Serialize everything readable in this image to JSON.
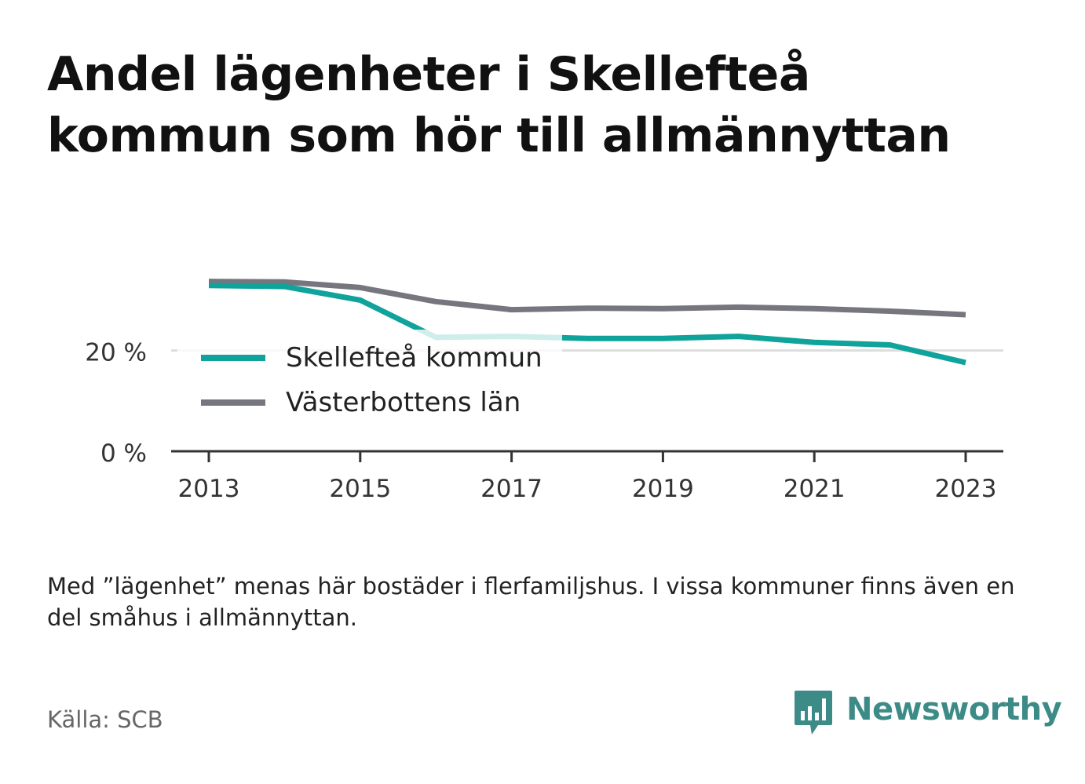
{
  "title": "Andel lägenheter i Skellefteå kommun som hör till allmännyttan",
  "note": "Med ”lägenhet” menas här bostäder i flerfamiljshus. I vissa kommuner finns även en del småhus i allmännyttan.",
  "source": "Källa: SCB",
  "brand": {
    "name": "Newsworthy",
    "color": "#3d8b87",
    "icon": "bar-chart-speech-bubble-icon"
  },
  "colors": {
    "skelleftea": "#0fa39b",
    "vasterbotten": "#76767e",
    "axis": "#333333",
    "grid": "#dddddd"
  },
  "chart_data": {
    "type": "line",
    "x": [
      2013,
      2014,
      2015,
      2016,
      2017,
      2018,
      2019,
      2020,
      2021,
      2022,
      2023
    ],
    "series": [
      {
        "name": "Skellefteå kommun",
        "values": [
          32.9,
          32.7,
          30.0,
          22.6,
          22.8,
          22.4,
          22.4,
          22.8,
          21.6,
          21.1,
          17.6
        ]
      },
      {
        "name": "Västerbottens län",
        "values": [
          33.7,
          33.6,
          32.5,
          29.7,
          28.1,
          28.4,
          28.3,
          28.6,
          28.3,
          27.8,
          27.1
        ]
      }
    ],
    "y_ticks": [
      0,
      20
    ],
    "y_tick_labels": [
      "0 %",
      "20 %"
    ],
    "x_ticks": [
      2013,
      2015,
      2017,
      2019,
      2021,
      2023
    ],
    "x_tick_labels": [
      "2013",
      "2015",
      "2017",
      "2019",
      "2021",
      "2023"
    ],
    "xlim": [
      2012.5,
      2023.5
    ],
    "ylim": [
      0,
      35
    ],
    "xlabel": "",
    "ylabel": "",
    "grid": true,
    "legend_position": "inside-left"
  }
}
